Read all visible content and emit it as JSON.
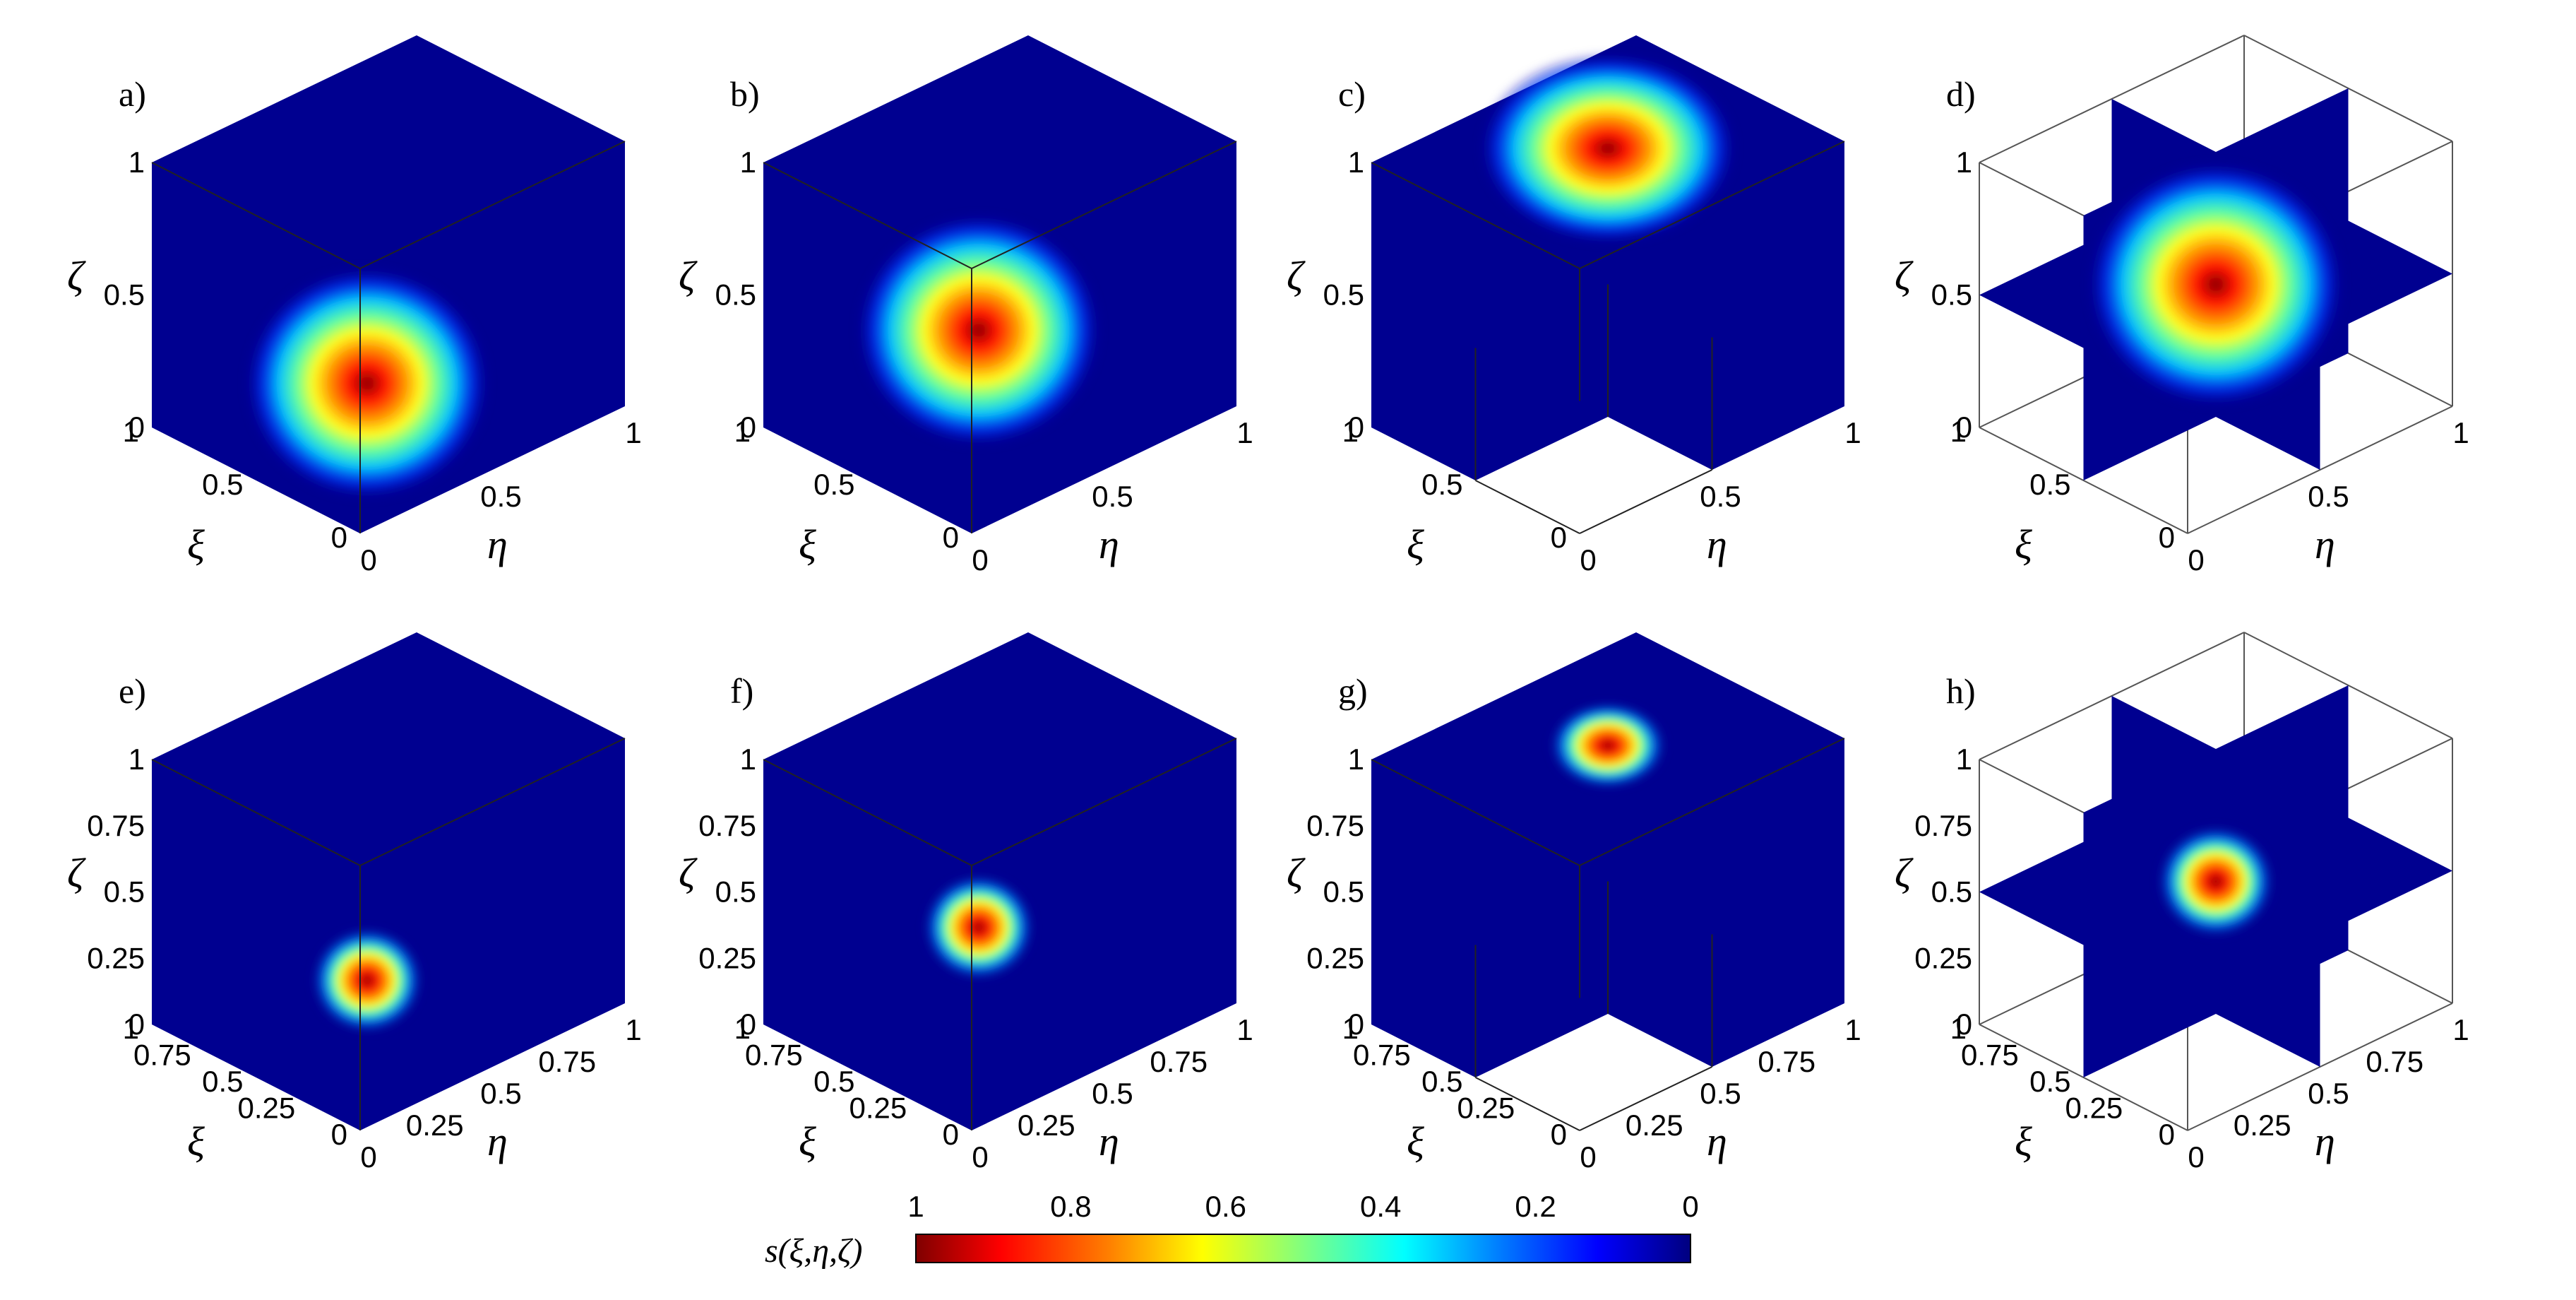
{
  "colormap": {
    "name": "jet",
    "stops": [
      "#7f0000",
      "#ff0000",
      "#ff8000",
      "#ffff00",
      "#80ff80",
      "#00ffff",
      "#0080ff",
      "#0000ff",
      "#00007f"
    ],
    "background_blue": "#000090"
  },
  "panels": [
    {
      "id": "a",
      "label": "a)",
      "kind": "full",
      "peak": [
        0.5,
        0.5,
        0.5
      ],
      "spread": "wide",
      "ticks": [
        "0",
        "0.5",
        "1"
      ]
    },
    {
      "id": "b",
      "label": "b)",
      "kind": "full",
      "peak": [
        0.5,
        0.5,
        0.7
      ],
      "spread": "wide",
      "ticks": [
        "0",
        "0.5",
        "1"
      ]
    },
    {
      "id": "c",
      "label": "c)",
      "kind": "cut",
      "peak": [
        0.5,
        0.5,
        0.9
      ],
      "spread": "wide",
      "ticks": [
        "0",
        "0.5",
        "1"
      ]
    },
    {
      "id": "d",
      "label": "d)",
      "kind": "slices",
      "peak": [
        0.5,
        0.5,
        0.5
      ],
      "spread": "wide",
      "ticks": [
        "0",
        "0.5",
        "1"
      ]
    },
    {
      "id": "e",
      "label": "e)",
      "kind": "full",
      "peak": [
        0.5,
        0.5,
        0.5
      ],
      "spread": "narrow",
      "ticks": [
        "0",
        "0.25",
        "0.5",
        "0.75",
        "1"
      ]
    },
    {
      "id": "f",
      "label": "f)",
      "kind": "full",
      "peak": [
        0.5,
        0.5,
        0.7
      ],
      "spread": "narrow",
      "ticks": [
        "0",
        "0.25",
        "0.5",
        "0.75",
        "1"
      ]
    },
    {
      "id": "g",
      "label": "g)",
      "kind": "cut",
      "peak": [
        0.5,
        0.5,
        0.9
      ],
      "spread": "narrow",
      "ticks": [
        "0",
        "0.25",
        "0.5",
        "0.75",
        "1"
      ]
    },
    {
      "id": "h",
      "label": "h)",
      "kind": "slices",
      "peak": [
        0.5,
        0.5,
        0.5
      ],
      "spread": "narrow",
      "ticks": [
        "0",
        "0.25",
        "0.5",
        "0.75",
        "1"
      ]
    }
  ],
  "axes": {
    "xi": "ξ",
    "eta": "η",
    "zeta": "ζ"
  },
  "colorbar": {
    "label": "s(ξ,η,ζ)",
    "ticks": [
      "1",
      "0.8",
      "0.6",
      "0.4",
      "0.2",
      "0"
    ]
  }
}
